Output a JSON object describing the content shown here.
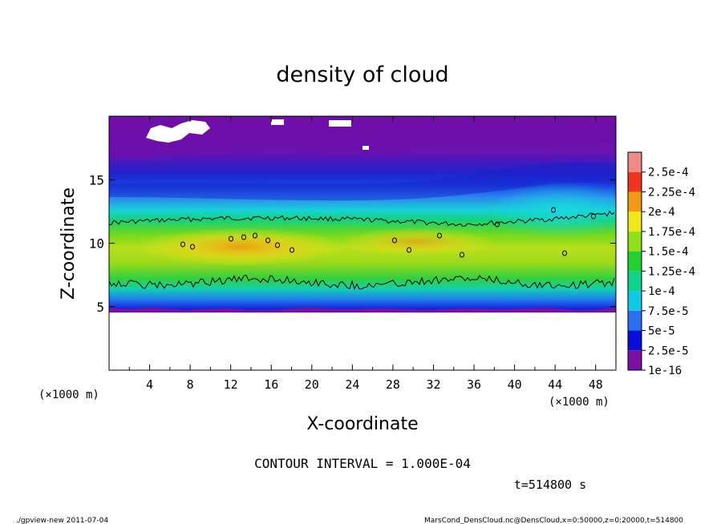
{
  "chart_data": {
    "type": "heatmap",
    "title": "density of cloud",
    "xlabel": "X-coordinate",
    "ylabel": "Z-coordinate",
    "x_unit": "(×1000 m)",
    "y_unit": "(×1000 m)",
    "xlim": [
      0,
      50
    ],
    "ylim": [
      0,
      20
    ],
    "x_ticks": [
      "4",
      "8",
      "12",
      "16",
      "20",
      "24",
      "28",
      "32",
      "36",
      "40",
      "44",
      "48"
    ],
    "x_tick_values": [
      4,
      8,
      12,
      16,
      20,
      24,
      28,
      32,
      36,
      40,
      44,
      48
    ],
    "y_ticks": [
      "5",
      "10",
      "15"
    ],
    "y_tick_values": [
      5,
      10,
      15
    ],
    "colorbar": {
      "labels": [
        "1e-16",
        "2.5e-5",
        "5e-5",
        "7.5e-5",
        "1e-4",
        "1.25e-4",
        "1.5e-4",
        "1.75e-4",
        "2e-4",
        "2.25e-4",
        "2.5e-4"
      ],
      "colors": [
        "#7b0fa3",
        "#0a0fd8",
        "#2a6ff0",
        "#13c8e6",
        "#10d28a",
        "#22d030",
        "#8ee018",
        "#f0e81a",
        "#f29a14",
        "#f03420",
        "#f08a86"
      ]
    },
    "field_description_bands": [
      {
        "z_range": [
          0,
          4.7
        ],
        "value": "no data"
      },
      {
        "z_range": [
          4.7,
          6.5
        ],
        "value_range": [
          2.5e-05,
          7.5e-05
        ]
      },
      {
        "z_range": [
          6.5,
          12
        ],
        "value_range": [
          0.0001,
          0.0002
        ],
        "peak_x_range": [
          8,
          20
        ]
      },
      {
        "z_range": [
          12,
          16.5
        ],
        "value_range": [
          2.5e-05,
          7.5e-05
        ]
      },
      {
        "z_range": [
          16.5,
          20
        ],
        "value_range": [
          1e-16,
          2.5e-05
        ]
      }
    ],
    "contour_levels": [
      0.0001,
      0.0002
    ],
    "contour_interval_text": "CONTOUR INTERVAL = 1.000E-04",
    "time_text": "t=514800 s"
  },
  "footer": {
    "left": "./gpview-new  2011-07-04",
    "right": "MarsCond_DensCloud.nc@DensCloud,x=0:50000,z=0:20000,t=514800"
  }
}
